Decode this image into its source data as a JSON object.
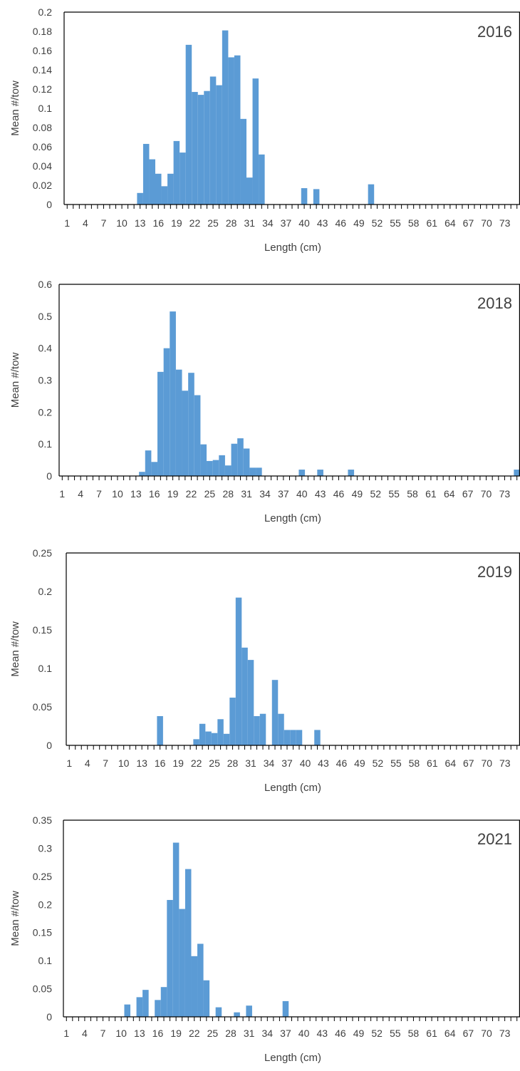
{
  "chart_data": [
    {
      "type": "bar",
      "title": "2016",
      "xlabel": "Length (cm)",
      "ylabel": "Mean #/tow",
      "x_ticks": [
        "1",
        "4",
        "7",
        "10",
        "13",
        "16",
        "19",
        "22",
        "25",
        "28",
        "31",
        "34",
        "37",
        "40",
        "43",
        "46",
        "49",
        "52",
        "55",
        "58",
        "61",
        "64",
        "67",
        "70",
        "73"
      ],
      "ylim": [
        0,
        0.2
      ],
      "y_ticks": [
        "0",
        "0.02",
        "0.04",
        "0.06",
        "0.08",
        "0.1",
        "0.12",
        "0.14",
        "0.16",
        "0.18",
        "0.2"
      ],
      "x": [
        13,
        14,
        15,
        16,
        17,
        18,
        19,
        20,
        21,
        22,
        23,
        24,
        25,
        26,
        27,
        28,
        29,
        30,
        31,
        32,
        33,
        40,
        42,
        51
      ],
      "values": [
        0.012,
        0.063,
        0.047,
        0.032,
        0.019,
        0.032,
        0.066,
        0.054,
        0.166,
        0.117,
        0.114,
        0.118,
        0.133,
        0.124,
        0.181,
        0.153,
        0.155,
        0.089,
        0.028,
        0.131,
        0.052,
        0.017,
        0.016,
        0.021
      ],
      "color": "#5b9bd5"
    },
    {
      "type": "bar",
      "title": "2018",
      "xlabel": "Length (cm)",
      "ylabel": "Mean #/tow",
      "x_ticks": [
        "1",
        "4",
        "7",
        "10",
        "13",
        "16",
        "19",
        "22",
        "25",
        "28",
        "31",
        "34",
        "37",
        "40",
        "43",
        "46",
        "49",
        "52",
        "55",
        "58",
        "61",
        "64",
        "67",
        "70",
        "73"
      ],
      "ylim": [
        0,
        0.6
      ],
      "y_ticks": [
        "0",
        "0.1",
        "0.2",
        "0.3",
        "0.4",
        "0.5",
        "0.6"
      ],
      "x": [
        14,
        15,
        16,
        17,
        18,
        19,
        20,
        21,
        22,
        23,
        24,
        25,
        26,
        27,
        28,
        29,
        30,
        31,
        32,
        33,
        40,
        43,
        48,
        75
      ],
      "values": [
        0.013,
        0.08,
        0.044,
        0.326,
        0.4,
        0.515,
        0.333,
        0.267,
        0.323,
        0.253,
        0.099,
        0.047,
        0.05,
        0.065,
        0.033,
        0.101,
        0.118,
        0.086,
        0.026,
        0.026,
        0.02,
        0.02,
        0.02,
        0.02
      ],
      "color": "#5b9bd5"
    },
    {
      "type": "bar",
      "title": "2019",
      "xlabel": "Length (cm)",
      "ylabel": "Mean #/tow",
      "x_ticks": [
        "1",
        "4",
        "7",
        "10",
        "13",
        "16",
        "19",
        "22",
        "25",
        "28",
        "31",
        "34",
        "37",
        "40",
        "43",
        "46",
        "49",
        "52",
        "55",
        "58",
        "61",
        "64",
        "67",
        "70",
        "73"
      ],
      "ylim": [
        0,
        0.25
      ],
      "y_ticks": [
        "0",
        "0.05",
        "0.1",
        "0.15",
        "0.2",
        "0.25"
      ],
      "x": [
        16,
        22,
        23,
        24,
        25,
        26,
        27,
        28,
        29,
        30,
        31,
        32,
        33,
        35,
        36,
        37,
        38,
        39,
        42
      ],
      "values": [
        0.038,
        0.008,
        0.028,
        0.018,
        0.016,
        0.034,
        0.015,
        0.062,
        0.192,
        0.127,
        0.111,
        0.038,
        0.041,
        0.085,
        0.041,
        0.02,
        0.02,
        0.02,
        0.02
      ],
      "color": "#5b9bd5"
    },
    {
      "type": "bar",
      "title": "2021",
      "xlabel": "Length (cm)",
      "ylabel": "Mean #/tow",
      "x_ticks": [
        "1",
        "4",
        "7",
        "10",
        "13",
        "16",
        "19",
        "22",
        "25",
        "28",
        "31",
        "34",
        "37",
        "40",
        "43",
        "46",
        "49",
        "52",
        "55",
        "58",
        "61",
        "64",
        "67",
        "70",
        "73"
      ],
      "ylim": [
        0,
        0.35
      ],
      "y_ticks": [
        "0",
        "0.05",
        "0.1",
        "0.15",
        "0.2",
        "0.25",
        "0.3",
        "0.35"
      ],
      "x": [
        11,
        13,
        14,
        16,
        17,
        18,
        19,
        20,
        21,
        22,
        23,
        24,
        26,
        29,
        31,
        37
      ],
      "values": [
        0.022,
        0.035,
        0.048,
        0.03,
        0.053,
        0.208,
        0.31,
        0.192,
        0.263,
        0.108,
        0.13,
        0.065,
        0.017,
        0.008,
        0.02,
        0.028
      ],
      "color": "#5b9bd5"
    }
  ]
}
